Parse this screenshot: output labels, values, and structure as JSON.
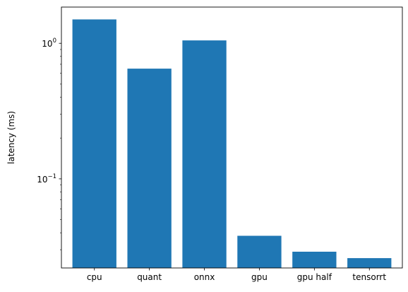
{
  "chart_data": {
    "type": "bar",
    "title": "",
    "xlabel": "",
    "ylabel": "latency (ms)",
    "yscale": "log",
    "ylim": [
      0.022,
      1.85
    ],
    "grid": false,
    "legend": "none",
    "bar_color": "#1f77b4",
    "categories": [
      "cpu",
      "quant",
      "onnx",
      "gpu",
      "gpu half",
      "tensorrt"
    ],
    "values": [
      1.5,
      0.65,
      1.05,
      0.038,
      0.029,
      0.026
    ],
    "y_major_ticks": [
      {
        "value": 1,
        "mantissa": "10",
        "exponent": "0"
      },
      {
        "value": 0.1,
        "mantissa": "10",
        "exponent": "−1"
      }
    ],
    "y_minor_ticks": [
      0.03,
      0.04,
      0.05,
      0.06,
      0.07,
      0.08,
      0.09,
      0.2,
      0.3,
      0.4,
      0.5,
      0.6,
      0.7,
      0.8,
      0.9
    ]
  }
}
